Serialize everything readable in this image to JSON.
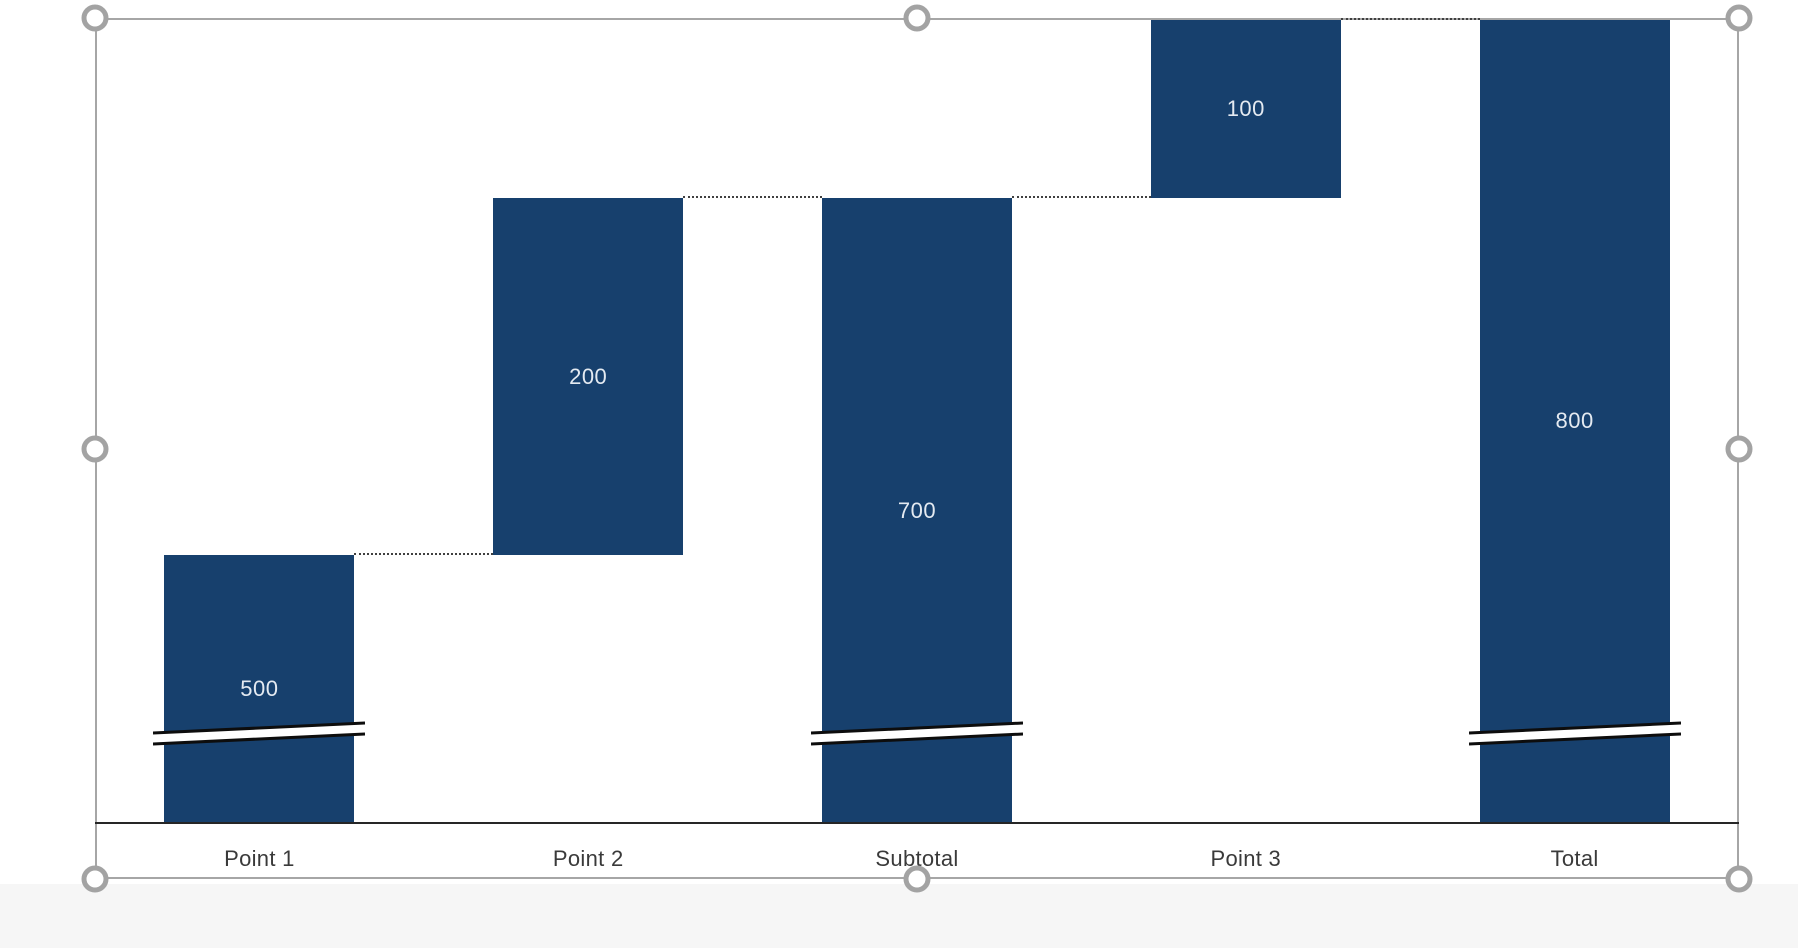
{
  "chart_data": {
    "type": "bar",
    "subtype": "waterfall",
    "title": "",
    "xlabel": "",
    "ylabel": "",
    "legend": "none",
    "gridlines": "off",
    "value_axis_visible": false,
    "axis_break_note": "bars starting at 0 are truncated with break marks near the bottom",
    "categories": [
      "Point 1",
      "Point 2",
      "Subtotal",
      "Point 3",
      "Total"
    ],
    "columns": [
      {
        "label": "Point 1",
        "base": 0,
        "value": 500,
        "data_label": "500",
        "axis_break": true
      },
      {
        "label": "Point 2",
        "base": 500,
        "value": 200,
        "data_label": "200",
        "axis_break": false
      },
      {
        "label": "Subtotal",
        "base": 0,
        "value": 700,
        "data_label": "700",
        "axis_break": true
      },
      {
        "label": "Point 3",
        "base": 700,
        "value": 100,
        "data_label": "100",
        "axis_break": false
      },
      {
        "label": "Total",
        "base": 0,
        "value": 800,
        "data_label": "800",
        "axis_break": true
      }
    ],
    "connectors": [
      {
        "from": "Point 1",
        "to": "Point 2",
        "level": 500
      },
      {
        "from": "Point 2",
        "to": "Subtotal",
        "level": 700
      },
      {
        "from": "Subtotal",
        "to": "Point 3",
        "level": 700
      },
      {
        "from": "Point 3",
        "to": "Total",
        "level": 800
      }
    ]
  },
  "colors": {
    "bar_fill": "#17406D",
    "data_label": "#E4EAF1",
    "category_label": "#3A3A3A",
    "axis_line": "#262626",
    "connector": "#404040",
    "break_line": "#0D0D0D",
    "break_gap": "#FFFFFF",
    "selection_border": "#A6A6A6",
    "handle_stroke": "#A3A3A3",
    "handle_fill": "#FFFFFF"
  },
  "selection": {
    "object": "chart",
    "handles": [
      "top-left",
      "top-center",
      "top-right",
      "middle-left",
      "middle-right",
      "bottom-left",
      "bottom-center",
      "bottom-right"
    ]
  }
}
